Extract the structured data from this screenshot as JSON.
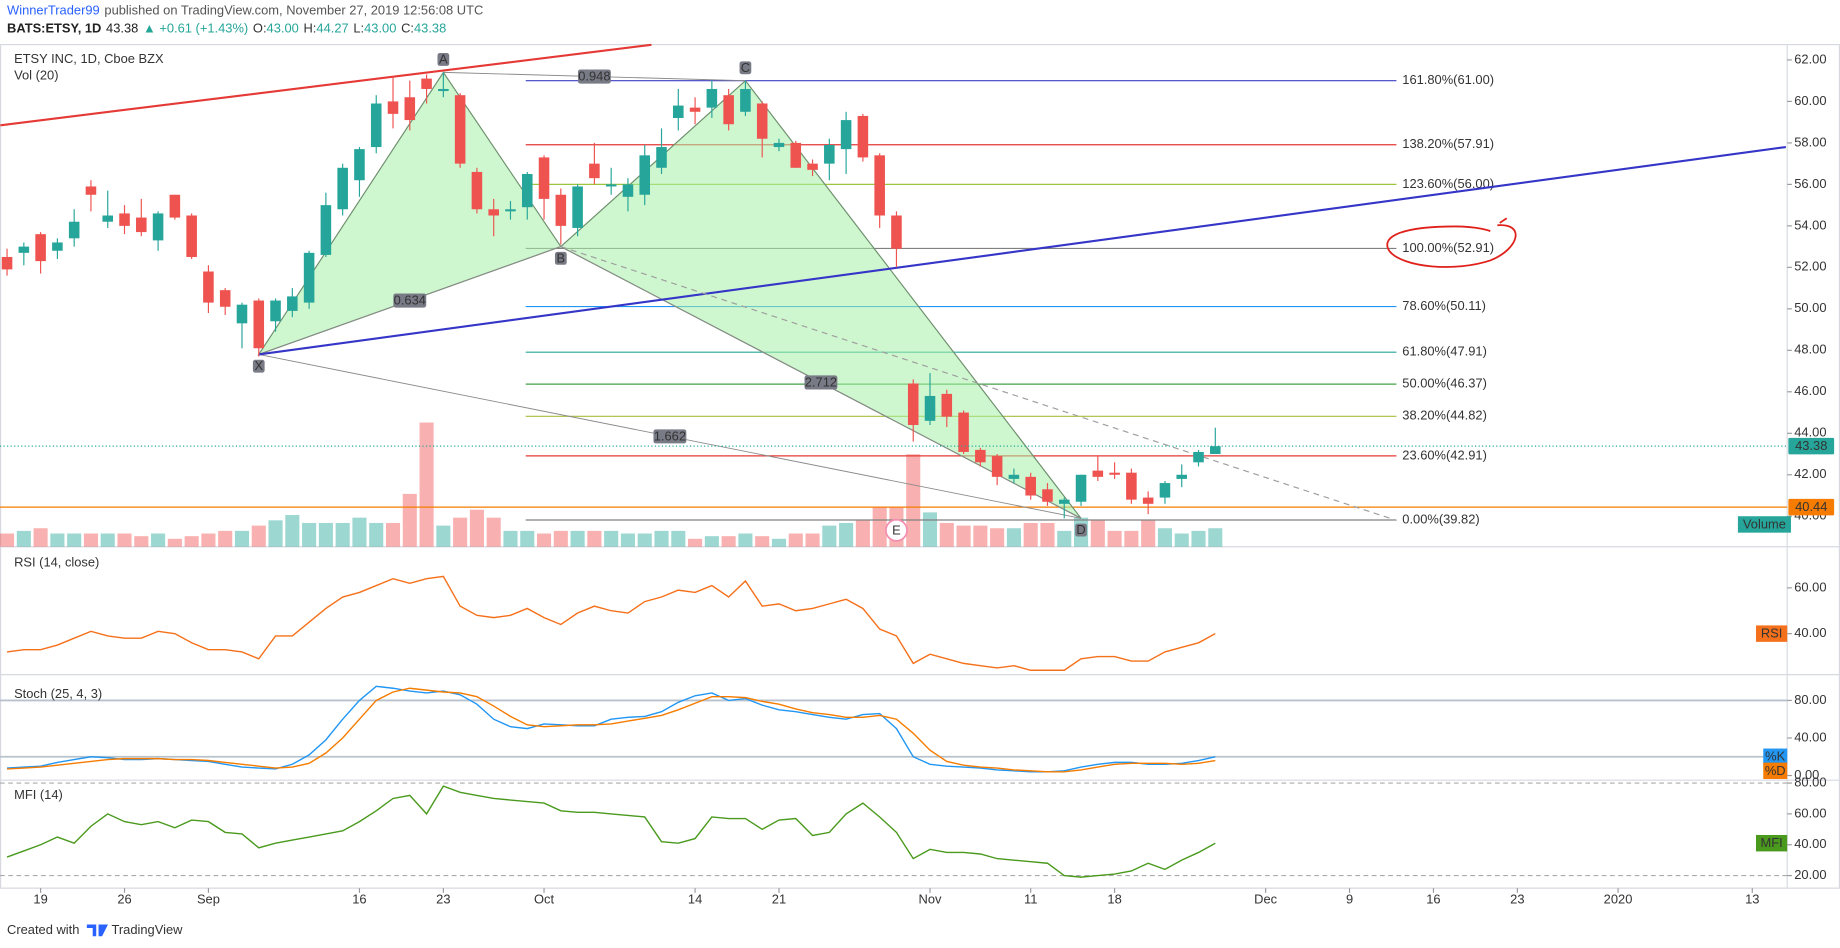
{
  "header": {
    "author": "WinnerTrader99",
    "published": "published on TradingView.com, November 27, 2019 12:56:08 UTC",
    "symbol": "BATS:ETSY, 1D",
    "last": "43.38",
    "change": "▲ +0.61 (+1.43%)",
    "o_label": "O:",
    "o": "43.00",
    "h_label": "H:",
    "h": "44.27",
    "l_label": "L:",
    "l": "43.00",
    "c_label": "C:",
    "c": "43.38"
  },
  "chart_data": [
    {
      "type": "candlestick",
      "title": "ETSY INC, 1D, Cboe BZX",
      "up_color": "#26a69a",
      "down_color": "#ef5350",
      "open": [
        52.5,
        52.7,
        53.6,
        52.8,
        53.4,
        55.9,
        54.2,
        54.6,
        54.4,
        53.3,
        55.5,
        54.5,
        51.8,
        50.9,
        49.3,
        50.4,
        49.4,
        49.9,
        50.3,
        52.6,
        54.8,
        56.2,
        57.8,
        60.0,
        60.2,
        61.1,
        60.5,
        60.3,
        56.6,
        54.8,
        54.7,
        54.9,
        57.3,
        55.5,
        53.9,
        57.0,
        55.9,
        55.4,
        55.5,
        56.8,
        59.2,
        59.7,
        59.7,
        60.3,
        59.5,
        59.9,
        57.8,
        58.0,
        57.0,
        57.0,
        57.7,
        59.3,
        57.4,
        54.5,
        46.4,
        44.6,
        45.9,
        45.0,
        43.2,
        42.9,
        41.8,
        41.9,
        41.3,
        40.6,
        40.7,
        42.2,
        42.1,
        42.1,
        40.9,
        40.9,
        41.8,
        42.6,
        43.0
      ],
      "high": [
        52.9,
        53.2,
        53.7,
        53.4,
        54.8,
        56.2,
        55.7,
        55.0,
        55.3,
        54.7,
        55.5,
        54.6,
        52.1,
        51.0,
        50.3,
        50.5,
        50.5,
        51.0,
        52.8,
        55.6,
        57.0,
        57.8,
        60.3,
        61.2,
        61.0,
        61.3,
        61.4,
        60.4,
        56.8,
        55.3,
        55.2,
        56.6,
        57.4,
        55.8,
        56.0,
        58.0,
        56.8,
        56.3,
        57.9,
        58.7,
        60.6,
        60.2,
        61.0,
        60.6,
        61.0,
        60.0,
        58.2,
        58.1,
        57.2,
        58.2,
        59.5,
        59.4,
        57.5,
        54.7,
        46.6,
        46.9,
        46.1,
        45.1,
        43.3,
        43.0,
        42.3,
        42.1,
        41.6,
        40.9,
        42.0,
        42.9,
        42.6,
        42.3,
        41.2,
        41.7,
        42.5,
        43.2,
        44.27
      ],
      "low": [
        51.6,
        52.1,
        51.7,
        52.4,
        53.0,
        54.7,
        53.9,
        53.6,
        53.5,
        52.8,
        54.3,
        52.4,
        49.8,
        49.7,
        48.1,
        47.7,
        48.9,
        49.6,
        50.0,
        52.5,
        54.5,
        55.4,
        57.5,
        58.7,
        58.6,
        59.9,
        60.2,
        56.8,
        54.6,
        53.5,
        54.3,
        54.3,
        54.3,
        53.1,
        53.5,
        56.0,
        55.5,
        54.7,
        55.0,
        56.5,
        58.6,
        58.9,
        59.2,
        58.6,
        59.3,
        57.3,
        57.6,
        56.8,
        56.4,
        56.2,
        56.5,
        57.1,
        53.9,
        52.0,
        43.6,
        44.4,
        44.3,
        43.0,
        42.4,
        41.5,
        41.6,
        40.8,
        40.5,
        39.9,
        40.5,
        41.7,
        41.8,
        40.6,
        40.1,
        40.6,
        41.4,
        42.4,
        43.0
      ],
      "close": [
        51.9,
        53.0,
        52.3,
        53.2,
        54.2,
        55.5,
        54.5,
        54.0,
        53.7,
        54.6,
        54.4,
        52.5,
        50.3,
        50.1,
        50.2,
        48.1,
        50.4,
        50.6,
        52.7,
        55.0,
        56.8,
        57.7,
        59.9,
        59.4,
        59.1,
        60.6,
        60.6,
        57.0,
        54.8,
        54.5,
        54.8,
        56.5,
        55.3,
        54.0,
        55.9,
        56.3,
        56.0,
        56.0,
        57.4,
        57.8,
        59.8,
        59.5,
        60.6,
        58.9,
        60.6,
        58.2,
        58.0,
        56.8,
        56.7,
        57.9,
        59.1,
        57.3,
        54.5,
        52.9,
        44.4,
        45.8,
        44.8,
        43.1,
        42.6,
        41.9,
        42.0,
        41.0,
        40.7,
        40.8,
        42.0,
        41.9,
        42.0,
        40.8,
        40.6,
        41.6,
        42.0,
        43.1,
        43.38
      ],
      "xlim": [
        -0.42,
        106.08
      ],
      "xticks": [
        {
          "value": 2,
          "label": "19"
        },
        {
          "value": 7,
          "label": "26"
        },
        {
          "value": 12,
          "label": "Sep"
        },
        {
          "value": 21,
          "label": "16"
        },
        {
          "value": 26,
          "label": "23"
        },
        {
          "value": 32,
          "label": "Oct"
        },
        {
          "value": 41,
          "label": "14"
        },
        {
          "value": 46,
          "label": "21"
        },
        {
          "value": 55,
          "label": "Nov"
        },
        {
          "value": 61,
          "label": "11"
        },
        {
          "value": 66,
          "label": "18"
        },
        {
          "value": 75,
          "label": "Dec"
        },
        {
          "value": 80,
          "label": "9"
        },
        {
          "value": 85,
          "label": "16"
        },
        {
          "value": 90,
          "label": "23"
        },
        {
          "value": 96,
          "label": "2020"
        },
        {
          "value": 104,
          "label": "13"
        }
      ],
      "ylim": [
        38.53,
        62.74
      ],
      "yticks": [
        {
          "value": 40,
          "label": "40.00"
        },
        {
          "value": 42,
          "label": "42.00"
        },
        {
          "value": 44,
          "label": "44.00"
        },
        {
          "value": 46,
          "label": "46.00"
        },
        {
          "value": 48,
          "label": "48.00"
        },
        {
          "value": 50,
          "label": "50.00"
        },
        {
          "value": 52,
          "label": "52.00"
        },
        {
          "value": 54,
          "label": "54.00"
        },
        {
          "value": 56,
          "label": "56.00"
        },
        {
          "value": 58,
          "label": "58.00"
        },
        {
          "value": 60,
          "label": "60.00"
        },
        {
          "value": 62,
          "label": "62.00"
        }
      ],
      "volume": {
        "title": "Vol (20)",
        "name": "Volume",
        "color": "#26a69a",
        "ylim": [
          0,
          19
        ],
        "values": [
          0.5,
          0.6,
          0.7,
          0.5,
          0.5,
          0.5,
          0.5,
          0.5,
          0.4,
          0.5,
          0.3,
          0.4,
          0.5,
          0.6,
          0.6,
          0.8,
          1.0,
          1.2,
          0.9,
          0.9,
          0.9,
          1.1,
          0.9,
          0.9,
          2.0,
          4.7,
          0.8,
          1.1,
          1.4,
          1.1,
          0.6,
          0.6,
          0.5,
          0.6,
          0.6,
          0.6,
          0.6,
          0.5,
          0.5,
          0.6,
          0.6,
          0.3,
          0.4,
          0.4,
          0.5,
          0.4,
          0.3,
          0.5,
          0.5,
          0.8,
          0.9,
          1.0,
          1.5,
          1.5,
          3.5,
          1.3,
          0.9,
          0.8,
          0.8,
          0.7,
          0.7,
          0.9,
          0.9,
          0.6,
          1.1,
          1.0,
          0.6,
          0.6,
          1.0,
          0.7,
          0.5,
          0.6,
          0.7
        ]
      },
      "last_price": {
        "value": 43.38,
        "label": "43.38",
        "color": "#26a69a"
      },
      "hlines": [
        {
          "value": 40.44,
          "label": "40.44",
          "color": "#f57c00"
        }
      ],
      "fib_levels": [
        {
          "value": 61.0,
          "label": "161.80%(61.00)",
          "color": "#3f3fc4"
        },
        {
          "value": 57.91,
          "label": "138.20%(57.91)",
          "color": "#e53935"
        },
        {
          "value": 56.0,
          "label": "123.60%(56.00)",
          "color": "#9bc53d"
        },
        {
          "value": 52.91,
          "label": "100.00%(52.91)",
          "color": "#808080"
        },
        {
          "value": 50.11,
          "label": "78.60%(50.11)",
          "color": "#2196f3"
        },
        {
          "value": 47.91,
          "label": "61.80%(47.91)",
          "color": "#26a69a"
        },
        {
          "value": 46.37,
          "label": "50.00%(46.37)",
          "color": "#43a047"
        },
        {
          "value": 44.82,
          "label": "38.20%(44.82)",
          "color": "#a5c03a"
        },
        {
          "value": 42.91,
          "label": "23.60%(42.91)",
          "color": "#e53935"
        },
        {
          "value": 39.82,
          "label": "0.00%(39.82)",
          "color": "#808080"
        }
      ],
      "pattern": {
        "fill": "#a8f0a8",
        "points": [
          {
            "label": "X",
            "x": 15,
            "y": 47.8
          },
          {
            "label": "A",
            "x": 26,
            "y": 61.4
          },
          {
            "label": "B",
            "x": 33,
            "y": 53.0
          },
          {
            "label": "C",
            "x": 44,
            "y": 61.0
          },
          {
            "label": "D",
            "x": 64,
            "y": 39.9
          }
        ],
        "ratios": [
          0.634,
          0.948,
          1.662,
          2.712
        ]
      },
      "trendlines": [
        {
          "color": "#e53935",
          "dashed": false,
          "x": [
            -0.4,
            38.4
          ],
          "y": [
            58.85,
            62.73
          ]
        },
        {
          "color": "#3535c8",
          "dashed": false,
          "x": [
            15,
            106
          ],
          "y": [
            47.8,
            57.8
          ]
        },
        {
          "color": "#9e9e9e",
          "dashed": true,
          "x": [
            33,
            82.8
          ],
          "y": [
            53.0,
            39.8
          ]
        }
      ],
      "events": [
        {
          "label": "E",
          "x": 53
        }
      ]
    },
    {
      "type": "line",
      "title": "RSI (14, close)",
      "ylim": [
        22.6,
        75.4
      ],
      "yticks": [
        {
          "value": 40,
          "label": "40.00"
        },
        {
          "value": 60,
          "label": "60.00"
        }
      ],
      "series": [
        {
          "name": "RSI",
          "color": "#f5701a",
          "values": [
            32,
            33,
            33,
            35,
            38,
            41,
            39,
            38,
            38,
            41,
            40,
            36,
            33,
            33,
            32,
            29,
            39,
            39,
            45,
            51,
            56,
            58,
            61,
            64,
            62,
            64,
            65,
            52,
            48,
            47,
            48,
            51,
            47,
            44,
            49,
            52,
            50,
            49,
            54,
            56,
            59,
            58,
            61,
            56,
            63,
            52,
            53,
            50,
            51,
            53,
            55,
            51,
            42,
            39,
            27,
            31,
            29,
            27,
            26,
            25,
            26,
            24,
            24,
            24,
            29,
            30,
            30,
            28,
            28,
            32,
            34,
            36,
            40
          ]
        }
      ]
    },
    {
      "type": "line",
      "title": "Stoch (25, 4, 3)",
      "ylim": [
        -5,
        101.25
      ],
      "yticks": [
        {
          "value": 0,
          "label": "0.00"
        },
        {
          "value": 40,
          "label": "40.00"
        },
        {
          "value": 80,
          "label": "80.00"
        }
      ],
      "bands": [
        20,
        80
      ],
      "series": [
        {
          "name": "%K",
          "color": "#2196f3",
          "values": [
            8,
            9,
            10,
            14,
            17,
            20,
            19,
            17,
            17,
            18,
            17,
            16,
            15,
            12,
            9,
            8,
            7,
            12,
            22,
            38,
            60,
            80,
            95,
            93,
            90,
            88,
            90,
            86,
            76,
            60,
            52,
            50,
            55,
            54,
            53,
            53,
            60,
            62,
            63,
            68,
            78,
            85,
            88,
            80,
            82,
            75,
            70,
            68,
            65,
            62,
            60,
            65,
            66,
            50,
            20,
            12,
            10,
            9,
            8,
            6,
            5,
            4,
            4,
            5,
            9,
            12,
            14,
            14,
            12,
            12,
            13,
            16,
            20
          ]
        },
        {
          "name": "%D",
          "color": "#f57c00",
          "values": [
            7,
            8,
            9,
            11,
            13,
            15,
            17,
            18,
            18,
            18,
            17,
            17,
            16,
            14,
            12,
            10,
            8,
            9,
            13,
            24,
            40,
            60,
            80,
            89,
            93,
            91,
            89,
            88,
            84,
            74,
            63,
            54,
            52,
            53,
            54,
            54,
            55,
            58,
            61,
            64,
            70,
            77,
            84,
            84,
            83,
            79,
            76,
            71,
            67,
            65,
            62,
            62,
            64,
            60,
            45,
            27,
            15,
            11,
            9,
            8,
            6,
            5,
            4,
            4,
            6,
            9,
            12,
            13,
            13,
            13,
            12,
            13,
            16
          ]
        }
      ]
    },
    {
      "type": "line",
      "title": "MFI (14)",
      "ylim": [
        12.6,
        82.6
      ],
      "yticks": [
        {
          "value": 20,
          "label": "20.00"
        },
        {
          "value": 40,
          "label": "40.00"
        },
        {
          "value": 60,
          "label": "60.00"
        },
        {
          "value": 80,
          "label": "80.00"
        }
      ],
      "bands": [
        20,
        80
      ],
      "series": [
        {
          "name": "MFI",
          "color": "#4a9a1e",
          "values": [
            32,
            36,
            40,
            45,
            41,
            52,
            60,
            55,
            53,
            55,
            51,
            56,
            55,
            48,
            47,
            38,
            41,
            43,
            45,
            47,
            49,
            55,
            62,
            70,
            72,
            60,
            78,
            74,
            72,
            70,
            69,
            68,
            67,
            62,
            61,
            61,
            60,
            59,
            58,
            42,
            41,
            44,
            58,
            57,
            57,
            50,
            56,
            57,
            46,
            48,
            60,
            67,
            58,
            48,
            31,
            37,
            35,
            35,
            34,
            31,
            30,
            29,
            28,
            20,
            19,
            20,
            21,
            23,
            28,
            24,
            30,
            35,
            41
          ]
        }
      ]
    }
  ],
  "footer": {
    "created": "Created with",
    "brand": "TradingView"
  }
}
